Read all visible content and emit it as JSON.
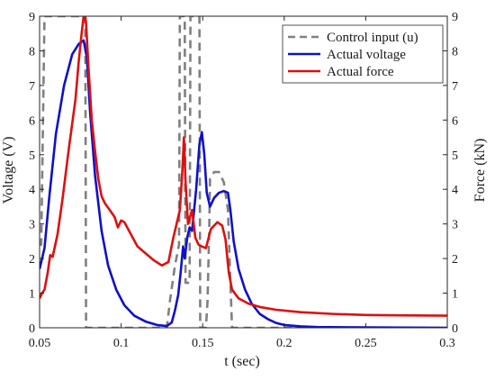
{
  "chart_data": {
    "type": "line",
    "xlabel": "t (sec)",
    "ylabel_left": "Voltage (V)",
    "ylabel_right": "Force (kN)",
    "xlim": [
      0.05,
      0.3
    ],
    "ylim_left": [
      0,
      9
    ],
    "ylim_right": [
      0,
      9
    ],
    "x_ticks": [
      "0.05",
      "0.1",
      "0.15",
      "0.2",
      "0.25",
      "0.3"
    ],
    "y_ticks_left": [
      "0",
      "1",
      "2",
      "3",
      "4",
      "5",
      "6",
      "7",
      "8",
      "9"
    ],
    "y_ticks_right": [
      "0",
      "1",
      "2",
      "3",
      "4",
      "5",
      "6",
      "7",
      "8",
      "9"
    ],
    "grid": false,
    "legend_position": "top-right",
    "series": [
      {
        "name": "Control input (u)",
        "color": "#808080",
        "style": "dashed",
        "x": [
          0.05,
          0.051,
          0.053,
          0.0535,
          0.078,
          0.0785,
          0.128,
          0.13,
          0.133,
          0.1355,
          0.136,
          0.139,
          0.1395,
          0.142,
          0.1425,
          0.148,
          0.1485,
          0.152,
          0.153,
          0.154,
          0.1545,
          0.157,
          0.16,
          0.163,
          0.1655,
          0.1665,
          0.168,
          0.1685,
          0.3
        ],
        "values": [
          2.4,
          2.4,
          9.0,
          9.0,
          9.0,
          0.0,
          0.0,
          0.8,
          1.8,
          2.4,
          9.0,
          9.0,
          1.3,
          1.3,
          9.0,
          9.0,
          0.0,
          0.0,
          0.8,
          2.8,
          4.3,
          4.5,
          4.5,
          4.2,
          3.4,
          2.0,
          0.0,
          0.0,
          0.0
        ]
      },
      {
        "name": "Actual voltage",
        "color": "#1010c8",
        "style": "solid",
        "x": [
          0.05,
          0.053,
          0.056,
          0.06,
          0.065,
          0.07,
          0.074,
          0.077,
          0.079,
          0.081,
          0.084,
          0.088,
          0.092,
          0.097,
          0.102,
          0.108,
          0.115,
          0.122,
          0.128,
          0.131,
          0.133,
          0.135,
          0.1365,
          0.138,
          0.139,
          0.1405,
          0.142,
          0.1435,
          0.146,
          0.148,
          0.1495,
          0.151,
          0.1525,
          0.1545,
          0.157,
          0.16,
          0.163,
          0.1655,
          0.167,
          0.169,
          0.172,
          0.176,
          0.18,
          0.185,
          0.19,
          0.195,
          0.2,
          0.21,
          0.22,
          0.3
        ],
        "values": [
          1.7,
          2.3,
          3.8,
          5.6,
          7.0,
          7.9,
          8.2,
          8.3,
          7.8,
          6.2,
          4.4,
          2.8,
          1.8,
          1.1,
          0.65,
          0.35,
          0.18,
          0.08,
          0.05,
          0.15,
          0.5,
          0.95,
          1.6,
          2.35,
          2.0,
          2.6,
          2.9,
          2.8,
          4.0,
          5.3,
          5.65,
          5.0,
          3.9,
          3.5,
          3.75,
          3.9,
          3.95,
          3.9,
          3.4,
          2.5,
          1.7,
          1.1,
          0.7,
          0.4,
          0.25,
          0.14,
          0.08,
          0.04,
          0.02,
          0.0
        ]
      },
      {
        "name": "Actual force",
        "color": "#dd1010",
        "style": "solid",
        "x": [
          0.05,
          0.0515,
          0.053,
          0.055,
          0.0565,
          0.058,
          0.061,
          0.064,
          0.068,
          0.072,
          0.074,
          0.076,
          0.0775,
          0.0785,
          0.08,
          0.082,
          0.084,
          0.086,
          0.088,
          0.09,
          0.093,
          0.096,
          0.098,
          0.1,
          0.102,
          0.106,
          0.11,
          0.115,
          0.12,
          0.125,
          0.129,
          0.132,
          0.134,
          0.136,
          0.1375,
          0.1385,
          0.1395,
          0.141,
          0.1435,
          0.1455,
          0.1475,
          0.1495,
          0.152,
          0.155,
          0.159,
          0.162,
          0.164,
          0.166,
          0.168,
          0.172,
          0.178,
          0.185,
          0.195,
          0.21,
          0.23,
          0.25,
          0.27,
          0.3
        ],
        "values": [
          0.85,
          1.0,
          1.1,
          1.6,
          2.1,
          2.05,
          2.7,
          3.7,
          5.2,
          6.6,
          7.7,
          8.6,
          9.2,
          8.8,
          7.5,
          6.0,
          5.1,
          4.3,
          3.8,
          3.6,
          3.4,
          3.2,
          2.9,
          3.1,
          3.05,
          2.7,
          2.35,
          2.15,
          1.95,
          1.8,
          1.9,
          2.6,
          3.0,
          3.4,
          4.5,
          5.5,
          4.2,
          3.0,
          3.4,
          2.6,
          2.4,
          2.35,
          2.3,
          2.85,
          3.05,
          2.95,
          2.55,
          1.6,
          1.1,
          0.85,
          0.7,
          0.6,
          0.52,
          0.45,
          0.4,
          0.37,
          0.36,
          0.35
        ]
      }
    ]
  }
}
